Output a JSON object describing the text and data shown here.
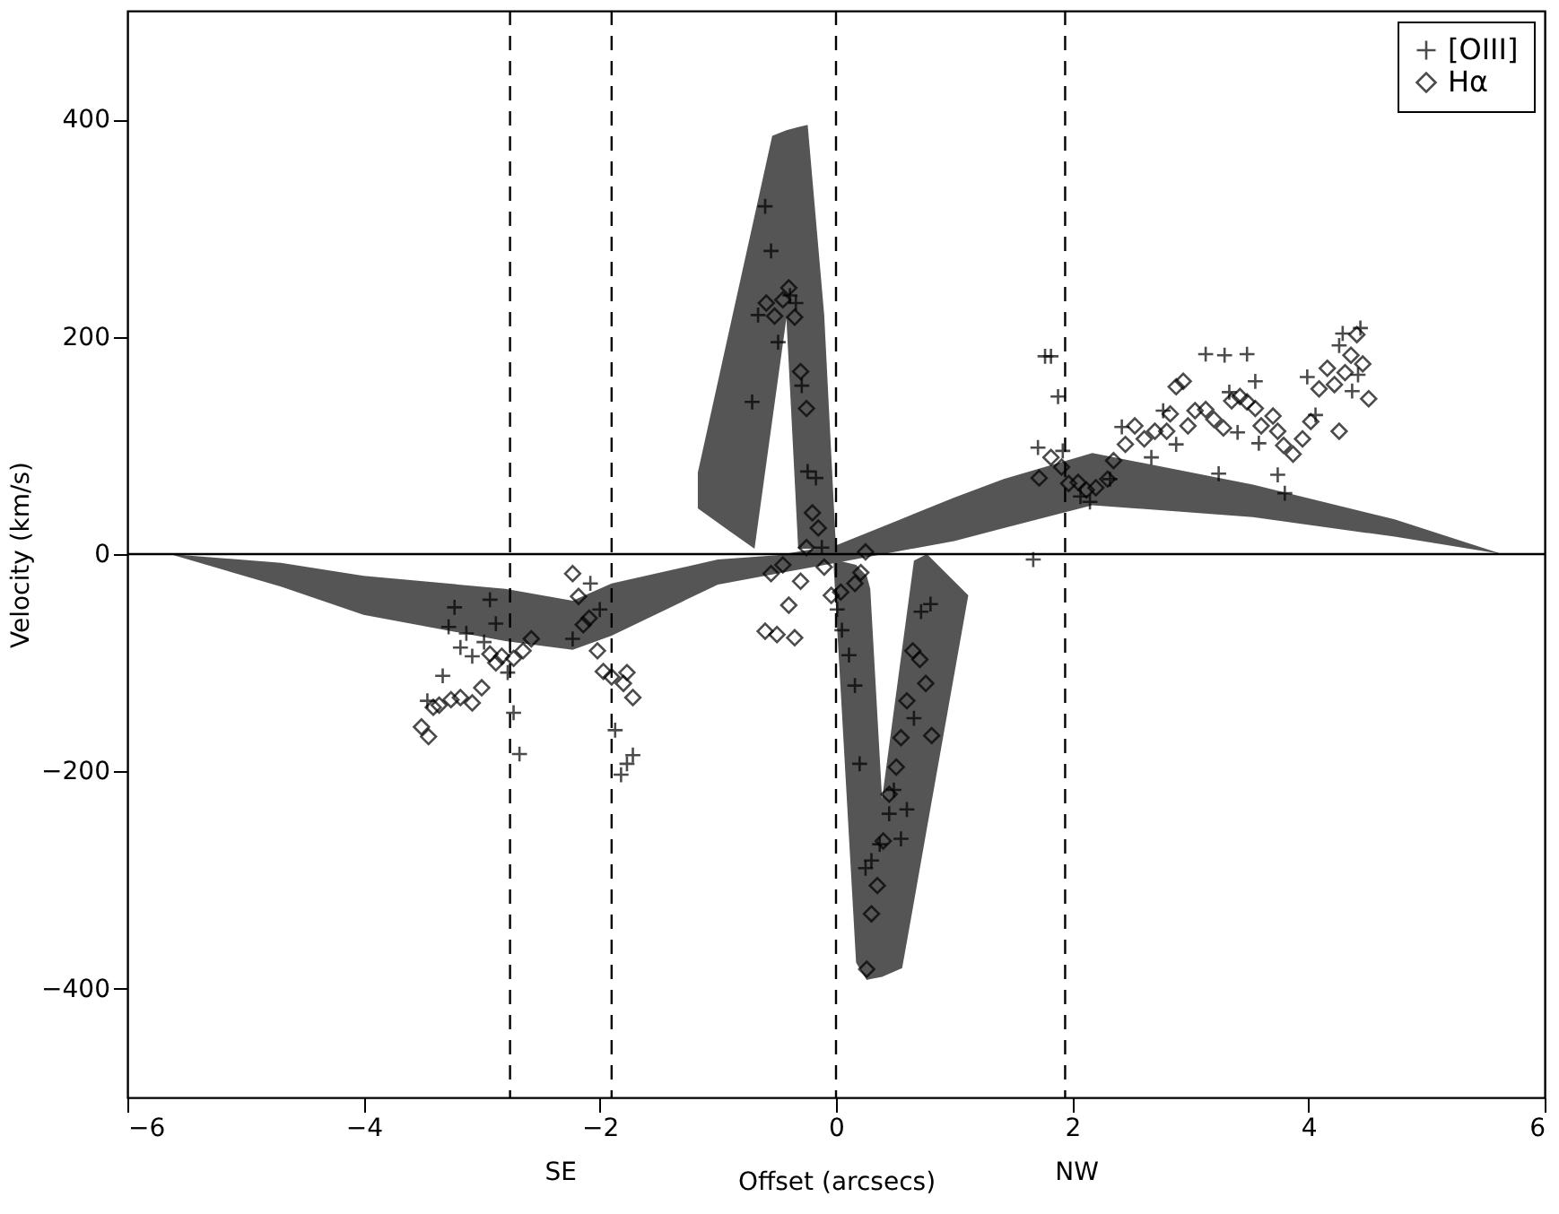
{
  "chart_data": {
    "type": "scatter",
    "xlabel": "Offset (arcsecs)",
    "ylabel": "Velocity (km/s)",
    "xlim": [
      -6,
      6
    ],
    "xticks": [
      -6,
      -4,
      -2,
      0,
      2,
      4,
      6
    ],
    "ylim": [
      -500,
      500
    ],
    "yticks": [
      -400,
      -200,
      0,
      200,
      400
    ],
    "grid": false,
    "legend": "top right",
    "annotations": [
      "SE",
      "NW"
    ],
    "ref_lines": [
      {
        "axis": "x",
        "value": -2.76,
        "line_style": "dashed",
        "color": "#000000"
      },
      {
        "axis": "x",
        "value": -1.9,
        "line_style": "dashed",
        "color": "#000000"
      },
      {
        "axis": "x",
        "value": 0,
        "line_style": "dashed",
        "color": "#000000"
      },
      {
        "axis": "x",
        "value": 1.94,
        "line_style": "dashed",
        "color": "#000000"
      },
      {
        "axis": "y",
        "value": 0,
        "line_style": "solid",
        "color": "#000000"
      }
    ],
    "series": [
      {
        "type": "line",
        "color": "#555555",
        "x": [
          -5.64,
          -4.7,
          -4.0,
          -2.8,
          -2.23,
          -1.9,
          -1.0,
          -0.5,
          0,
          0.5,
          1.0,
          1.42,
          2.17,
          3.53,
          4.73,
          5.64
        ],
        "values": [
          null,
          null,
          null,
          null,
          null,
          null,
          null,
          null,
          null,
          null,
          null,
          null,
          null,
          null,
          null,
          null
        ],
        "lower": [
          0,
          -30,
          -56,
          -80,
          -88,
          -75,
          -28,
          -18,
          -8,
          2,
          12,
          24,
          45,
          34,
          16,
          0
        ],
        "upper": [
          0,
          -8,
          -20,
          -32,
          -43,
          -27,
          -5,
          -1,
          8,
          30,
          52,
          69,
          93,
          64,
          32,
          0
        ]
      },
      {
        "type": "line",
        "color": "#555555",
        "x": [
          -1.17,
          -0.9,
          -0.69,
          -0.54,
          -0.42,
          -0.32,
          -0.24,
          -0.1,
          0
        ],
        "values": [
          null,
          null,
          null,
          null,
          null,
          null,
          null,
          null,
          null
        ],
        "lower": [
          42,
          21,
          5,
          123,
          217,
          5,
          5,
          5,
          5
        ],
        "upper": [
          75,
          208,
          311,
          385,
          390,
          393,
          395,
          220,
          5
        ]
      },
      {
        "type": "line",
        "color": "#555555",
        "x": [
          -0.02,
          0.17,
          0.26,
          0.29,
          0.39,
          0.56,
          0.66,
          0.77,
          1.12
        ],
        "values": [
          null,
          null,
          null,
          null,
          null,
          null,
          null,
          null,
          null
        ],
        "lower": [
          -11,
          -376,
          -392,
          -391,
          -389,
          -381,
          -320,
          -252,
          -38
        ],
        "upper": [
          -5,
          -10,
          -20,
          -32,
          -225,
          -87,
          -6,
          0,
          -38
        ]
      },
      {
        "name": "[OIII]",
        "color": "#000000",
        "marker": "cross",
        "x": [
          -3.23,
          -2.93,
          -3.28,
          -3.13,
          -2.88,
          -3.18,
          -3.08,
          -2.98,
          -3.33,
          -3.46,
          -2.78,
          -2.73,
          -2.68,
          -2.08,
          -2.0,
          -2.23,
          -1.87,
          -1.72,
          -1.77,
          -1.82,
          -0.6,
          -0.55,
          -0.39,
          -0.34,
          -0.66,
          -0.49,
          -0.71,
          -0.29,
          -0.24,
          -0.17,
          -0.12,
          0.01,
          0.05,
          0.11,
          0.16,
          0.2,
          0.72,
          0.8,
          0.66,
          0.49,
          0.45,
          0.6,
          0.55,
          0.37,
          0.3,
          0.25,
          1.77,
          1.82,
          1.88,
          1.71,
          1.92,
          1.67,
          2.07,
          2.15,
          2.32,
          2.42,
          2.67,
          2.77,
          2.88,
          3.13,
          3.29,
          3.48,
          3.55,
          3.33,
          3.24,
          3.4,
          3.58,
          3.74,
          3.8,
          3.99,
          4.06,
          4.29,
          4.44,
          4.26,
          4.37,
          4.42
        ],
        "values": [
          -49,
          -42,
          -67,
          -73,
          -64,
          -86,
          -94,
          -81,
          -112,
          -135,
          -109,
          -146,
          -184,
          -27,
          -51,
          -78,
          -162,
          -185,
          -193,
          -203,
          320,
          279,
          238,
          231,
          220,
          195,
          140,
          155,
          76,
          70,
          6,
          -51,
          -70,
          -93,
          -121,
          -193,
          -53,
          -46,
          -151,
          -217,
          -239,
          -235,
          -262,
          -267,
          -282,
          -289,
          182,
          182,
          145,
          98,
          95,
          -5,
          53,
          48,
          69,
          117,
          89,
          132,
          101,
          184,
          183,
          184,
          159,
          149,
          74,
          112,
          102,
          73,
          56,
          163,
          128,
          203,
          208,
          192,
          150,
          165
        ]
      },
      {
        "name": "Hα",
        "color": "#000000",
        "marker": "diamond",
        "x": [
          -2.23,
          -2.18,
          -2.14,
          -2.09,
          -2.02,
          -1.97,
          -1.9,
          -1.77,
          -1.8,
          -1.72,
          -2.58,
          -2.65,
          -2.73,
          -2.83,
          -2.93,
          -2.88,
          -3.0,
          -3.08,
          -3.18,
          -3.26,
          -3.36,
          -3.41,
          -3.51,
          -3.45,
          -0.4,
          -0.59,
          -0.52,
          -0.45,
          -0.35,
          -0.3,
          -0.25,
          -0.2,
          -0.15,
          -0.25,
          0.25,
          -0.55,
          -0.45,
          -0.3,
          -0.1,
          -0.4,
          -0.6,
          -0.5,
          -0.35,
          -0.04,
          0.04,
          0.16,
          0.21,
          0.65,
          0.71,
          0.76,
          0.6,
          0.81,
          0.55,
          0.51,
          0.45,
          0.4,
          0.35,
          0.3,
          0.26,
          1.72,
          1.82,
          1.91,
          1.97,
          2.05,
          2.12,
          2.2,
          2.3,
          2.35,
          2.45,
          2.53,
          2.61,
          2.7,
          2.8,
          2.83,
          2.88,
          2.94,
          2.98,
          3.04,
          3.13,
          3.2,
          3.28,
          3.35,
          3.42,
          3.48,
          3.55,
          3.6,
          3.7,
          3.74,
          3.79,
          3.87,
          3.95,
          4.02,
          4.09,
          4.16,
          4.22,
          4.26,
          4.31,
          4.36,
          4.41,
          4.46,
          4.51
        ],
        "values": [
          -18,
          -39,
          -65,
          -59,
          -89,
          -108,
          -113,
          -109,
          -119,
          -132,
          -78,
          -89,
          -96,
          -94,
          -92,
          -100,
          -123,
          -137,
          -132,
          -134,
          -139,
          -141,
          -159,
          -168,
          245,
          231,
          219,
          234,
          218,
          168,
          134,
          38,
          24,
          6,
          2,
          -18,
          -10,
          -25,
          -12,
          -47,
          -71,
          -74,
          -77,
          -38,
          -35,
          -27,
          -17,
          -89,
          -97,
          -119,
          -135,
          -167,
          -169,
          -196,
          -221,
          -264,
          -305,
          -331,
          -382,
          70,
          89,
          80,
          65,
          66,
          59,
          61,
          69,
          86,
          101,
          118,
          106,
          113,
          113,
          129,
          154,
          159,
          118,
          132,
          133,
          124,
          116,
          141,
          145,
          140,
          134,
          118,
          127,
          113,
          100,
          92,
          106,
          122,
          152,
          171,
          156,
          113,
          167,
          183,
          202,
          175,
          143
        ]
      }
    ]
  }
}
